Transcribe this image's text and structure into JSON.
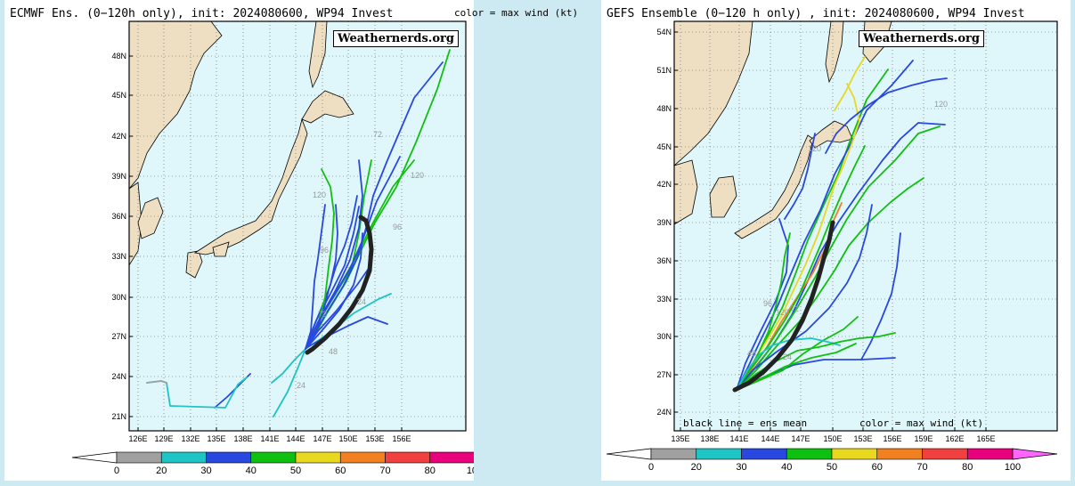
{
  "left": {
    "title": "ECMWF Ens. (0−120h only), init: 2024080600, WP94 Invest",
    "note": "color = max wind (kt)",
    "watermark": "Weathernerds.org",
    "lat_labels": [
      "48N",
      "45N",
      "42N",
      "39N",
      "36N",
      "33N",
      "30N",
      "27N",
      "24N",
      "21N"
    ],
    "lon_labels": [
      "126E",
      "129E",
      "132E",
      "135E",
      "138E",
      "141E",
      "144E",
      "147E",
      "150E",
      "153E",
      "156E"
    ],
    "hour_labels": [
      "120",
      "120",
      "96",
      "96",
      "72",
      "72",
      "48",
      "24",
      "24"
    ]
  },
  "right": {
    "title": "GEFS Ensemble (0−120 h only) , init: 2024080600, WP94 Invest",
    "watermark": "Weathernerds.org",
    "mean_note": "black line = ens mean",
    "color_note": "color = max wind (kt)",
    "lat_labels": [
      "54N",
      "51N",
      "48N",
      "45N",
      "42N",
      "39N",
      "36N",
      "33N",
      "30N",
      "27N",
      "24N"
    ],
    "lon_labels": [
      "135E",
      "138E",
      "141E",
      "144E",
      "147E",
      "150E",
      "153E",
      "156E",
      "159E",
      "162E",
      "165E"
    ],
    "hour_labels": [
      "120",
      "120",
      "120",
      "96",
      "72",
      "48",
      "24"
    ]
  },
  "colorbar": {
    "ticks": [
      "0",
      "20",
      "30",
      "40",
      "50",
      "60",
      "70",
      "80",
      "100"
    ],
    "colors": [
      "#a0a0a0",
      "#1fc4c4",
      "#2848e0",
      "#10c010",
      "#e8d820",
      "#f08020",
      "#f04040",
      "#e8007c"
    ],
    "under": "#ffffff",
    "over": "#ff66ff"
  },
  "palette": {
    "ocean": "#dff6fa",
    "land": "#eedfc3",
    "mean_track": "#222222"
  }
}
